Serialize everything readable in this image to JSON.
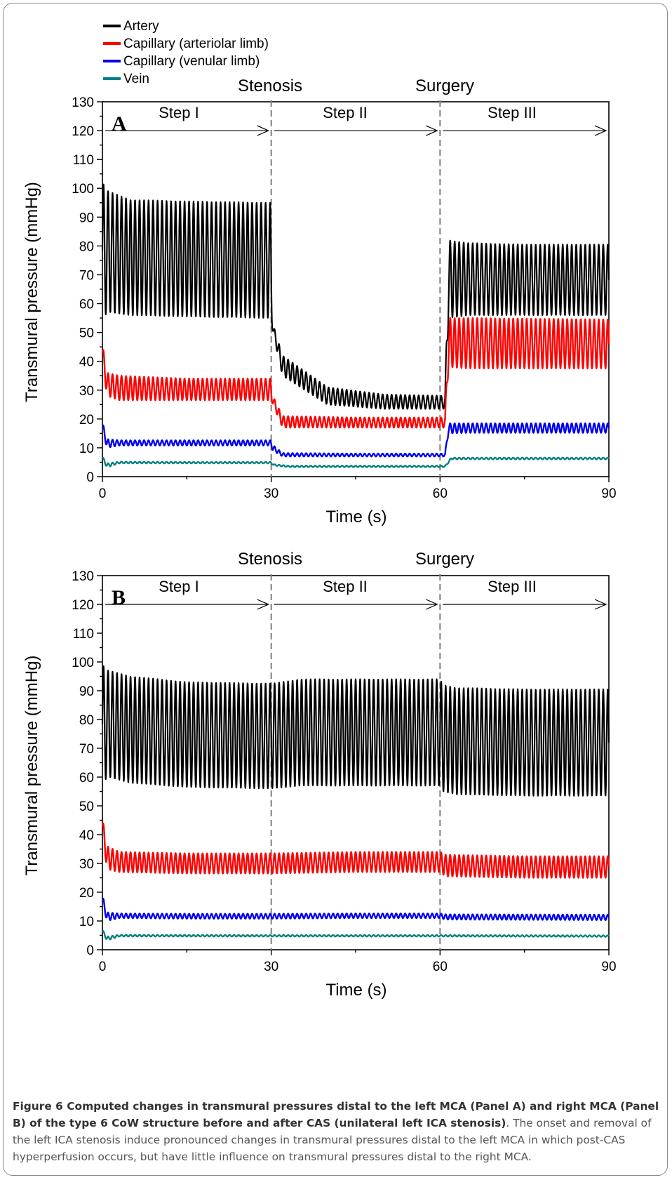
{
  "legend": [
    {
      "name": "Artery",
      "color": "#000000"
    },
    {
      "name": "Capillary (arteriolar limb)",
      "color": "#ff0000"
    },
    {
      "name": "Capillary (venular limb)",
      "color": "#0000ee"
    },
    {
      "name": "Vein",
      "color": "#008080"
    }
  ],
  "events": {
    "stenosis": "Stenosis",
    "surgery": "Surgery"
  },
  "steps": [
    "Step I",
    "Step II",
    "Step III"
  ],
  "ylabel": "Transmural pressure (mmHg)",
  "xlabel": "Time (s)",
  "caption": {
    "title": "Figure 6 Computed changes in transmural pressures distal to the left MCA (Panel A) and right MCA (Panel B) of the type 6 CoW structure before and after CAS (unilateral left ICA stenosis)",
    "body": ". The onset and removal of the left ICA stenosis induce pronounced changes in transmural pressures distal to the left MCA in which post-CAS hyperperfusion occurs, but have little influence on transmural pressures distal to the right MCA."
  },
  "chart_data": [
    {
      "type": "line",
      "panel": "A",
      "xlim": [
        0,
        90
      ],
      "ylim": [
        0,
        130
      ],
      "xticks": [
        0,
        30,
        60,
        90
      ],
      "yticks": [
        0,
        10,
        20,
        30,
        40,
        50,
        60,
        70,
        80,
        90,
        100,
        110,
        120,
        130
      ],
      "event_lines_x": [
        30,
        60
      ],
      "series": [
        {
          "name": "Artery",
          "color": "#000000",
          "x": [
            0,
            1,
            5,
            15,
            29.9,
            30.3,
            32,
            40,
            50,
            60.9,
            61.5,
            65,
            75,
            90
          ],
          "y_max": [
            102,
            99,
            96,
            95.5,
            95,
            53,
            42,
            31,
            28.5,
            28,
            82,
            81,
            80.5,
            80.5
          ],
          "y_min": [
            55,
            57,
            56,
            55.5,
            55,
            50,
            35,
            25,
            23.5,
            23.5,
            55,
            56,
            56,
            56
          ]
        },
        {
          "name": "Capillary (arteriolar limb)",
          "color": "#ff0000",
          "x": [
            0,
            0.8,
            3,
            15,
            29.9,
            30.3,
            32,
            45,
            60.9,
            61.5,
            65,
            90
          ],
          "y_max": [
            46,
            36,
            35,
            34,
            34,
            28,
            21,
            20.5,
            20.5,
            55,
            55,
            54.5
          ],
          "y_min": [
            40,
            28,
            26.5,
            26.5,
            26.5,
            25,
            17,
            17,
            17,
            38,
            37.5,
            37.5
          ]
        },
        {
          "name": "Capillary (venular limb)",
          "color": "#0000ee",
          "x": [
            0,
            0.8,
            3,
            15,
            29.9,
            30.3,
            32,
            45,
            60.9,
            61.5,
            65,
            90
          ],
          "y_max": [
            19,
            13,
            12.6,
            12.6,
            12.6,
            11,
            8.2,
            8,
            8,
            18.5,
            18.5,
            18.5
          ],
          "y_min": [
            16,
            10,
            10.8,
            10.8,
            10.8,
            9,
            7,
            7,
            7,
            15,
            15.2,
            15.2
          ]
        },
        {
          "name": "Vein",
          "color": "#008080",
          "x": [
            0,
            0.8,
            3,
            15,
            29.9,
            30.5,
            33,
            45,
            60.9,
            62,
            66,
            90
          ],
          "y_max": [
            7,
            4.6,
            5.2,
            5.1,
            5.1,
            4.3,
            3.8,
            3.8,
            3.8,
            6.6,
            6.6,
            6.6
          ],
          "y_min": [
            6,
            3.2,
            4.6,
            4.6,
            4.6,
            3.8,
            3.3,
            3.3,
            3.3,
            6.0,
            6.0,
            6.0
          ]
        }
      ]
    },
    {
      "type": "line",
      "panel": "B",
      "xlim": [
        0,
        90
      ],
      "ylim": [
        0,
        130
      ],
      "xticks": [
        0,
        30,
        60,
        90
      ],
      "yticks": [
        0,
        10,
        20,
        30,
        40,
        50,
        60,
        70,
        80,
        90,
        100,
        110,
        120,
        130
      ],
      "event_lines_x": [
        30,
        60
      ],
      "series": [
        {
          "name": "Artery",
          "color": "#000000",
          "x": [
            0,
            1,
            5,
            15,
            29.9,
            30.3,
            35,
            45,
            60,
            60.5,
            63,
            75,
            90
          ],
          "y_max": [
            99,
            97,
            95,
            93,
            92.5,
            92.5,
            94,
            94,
            94,
            92,
            91,
            90.5,
            90.5
          ],
          "y_min": [
            58,
            60,
            58,
            56.5,
            56,
            56,
            57,
            57,
            57,
            55,
            54,
            53.5,
            53.5
          ]
        },
        {
          "name": "Capillary (arteriolar limb)",
          "color": "#ff0000",
          "x": [
            0,
            0.8,
            3,
            15,
            30,
            45,
            60,
            61,
            75,
            90
          ],
          "y_max": [
            46,
            36,
            34,
            33.5,
            33.5,
            34,
            34,
            33,
            32.5,
            32.5
          ],
          "y_min": [
            40,
            28,
            27,
            26.5,
            26.5,
            27,
            27,
            25.5,
            25,
            25
          ]
        },
        {
          "name": "Capillary (venular limb)",
          "color": "#0000ee",
          "x": [
            0,
            0.8,
            3,
            15,
            30,
            45,
            60,
            61,
            90
          ],
          "y_max": [
            19,
            13,
            12.6,
            12.5,
            12.5,
            12.6,
            12.6,
            12.3,
            12.2
          ],
          "y_min": [
            16,
            10,
            11,
            10.8,
            10.8,
            11,
            11,
            10.5,
            10.3
          ]
        },
        {
          "name": "Vein",
          "color": "#008080",
          "x": [
            0,
            0.8,
            3,
            30,
            60,
            90
          ],
          "y_max": [
            7,
            4.6,
            5.2,
            5.1,
            5.1,
            5.0
          ],
          "y_min": [
            6,
            3.2,
            4.6,
            4.6,
            4.6,
            4.5
          ]
        }
      ]
    }
  ]
}
